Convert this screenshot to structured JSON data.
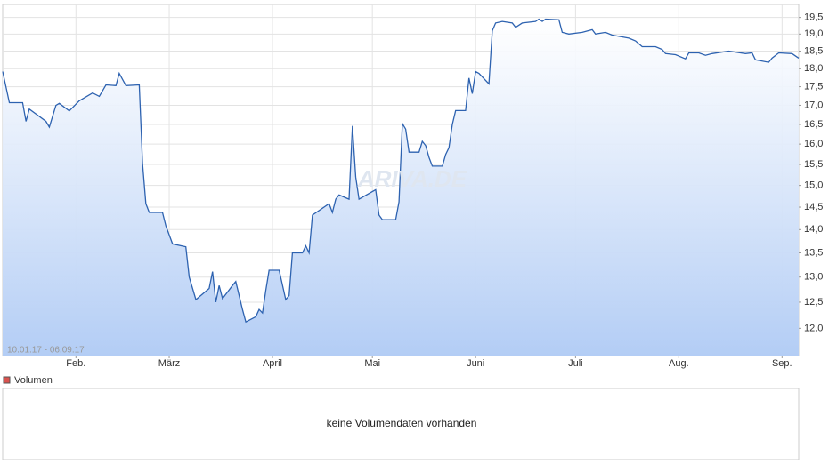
{
  "chart_data": {
    "type": "area",
    "range_label": "10.01.17 - 06.09.17",
    "watermark": "ARIVA.DE",
    "volume_label": "Volumen",
    "volume_color": "#d9534f",
    "volume_message": "keine Volumendaten vorhanden",
    "yscale": "log",
    "grid": true,
    "ylim": [
      11.5,
      19.9
    ],
    "yticks": [
      {
        "value": 12.0,
        "label": "12,0"
      },
      {
        "value": 12.5,
        "label": "12,5"
      },
      {
        "value": 13.0,
        "label": "13,0"
      },
      {
        "value": 13.5,
        "label": "13,5"
      },
      {
        "value": 14.0,
        "label": "14,0"
      },
      {
        "value": 14.5,
        "label": "14,5"
      },
      {
        "value": 15.0,
        "label": "15,0"
      },
      {
        "value": 15.5,
        "label": "15,5"
      },
      {
        "value": 16.0,
        "label": "16,0"
      },
      {
        "value": 16.5,
        "label": "16,5"
      },
      {
        "value": 17.0,
        "label": "17,0"
      },
      {
        "value": 17.5,
        "label": "17,5"
      },
      {
        "value": 18.0,
        "label": "18,0"
      },
      {
        "value": 18.5,
        "label": "18,5"
      },
      {
        "value": 19.0,
        "label": "19,0"
      },
      {
        "value": 19.5,
        "label": "19,5"
      }
    ],
    "xlim": [
      "2017-01-10",
      "2017-09-06"
    ],
    "xticks": [
      {
        "value": "2017-02-01",
        "label": "Feb."
      },
      {
        "value": "2017-03-01",
        "label": "März"
      },
      {
        "value": "2017-04-01",
        "label": "April"
      },
      {
        "value": "2017-05-01",
        "label": "Mai"
      },
      {
        "value": "2017-06-01",
        "label": "Juni"
      },
      {
        "value": "2017-07-01",
        "label": "Juli"
      },
      {
        "value": "2017-08-01",
        "label": "Aug."
      },
      {
        "value": "2017-09-01",
        "label": "Sep."
      }
    ],
    "x": [
      "2017-01-10",
      "2017-01-12",
      "2017-01-16",
      "2017-01-17",
      "2017-01-18",
      "2017-01-23",
      "2017-01-24",
      "2017-01-26",
      "2017-01-27",
      "2017-01-30",
      "2017-02-02",
      "2017-02-06",
      "2017-02-08",
      "2017-02-10",
      "2017-02-13",
      "2017-02-14",
      "2017-02-16",
      "2017-02-20",
      "2017-02-21",
      "2017-02-22",
      "2017-02-23",
      "2017-02-27",
      "2017-02-28",
      "2017-03-02",
      "2017-03-06",
      "2017-03-07",
      "2017-03-09",
      "2017-03-13",
      "2017-03-14",
      "2017-03-15",
      "2017-03-16",
      "2017-03-17",
      "2017-03-20",
      "2017-03-21",
      "2017-03-23",
      "2017-03-24",
      "2017-03-27",
      "2017-03-28",
      "2017-03-29",
      "2017-03-30",
      "2017-03-31",
      "2017-04-03",
      "2017-04-05",
      "2017-04-06",
      "2017-04-07",
      "2017-04-10",
      "2017-04-11",
      "2017-04-12",
      "2017-04-13",
      "2017-04-18",
      "2017-04-19",
      "2017-04-20",
      "2017-04-21",
      "2017-04-24",
      "2017-04-25",
      "2017-04-26",
      "2017-04-27",
      "2017-05-02",
      "2017-05-03",
      "2017-05-04",
      "2017-05-08",
      "2017-05-09",
      "2017-05-10",
      "2017-05-11",
      "2017-05-12",
      "2017-05-15",
      "2017-05-16",
      "2017-05-17",
      "2017-05-18",
      "2017-05-19",
      "2017-05-22",
      "2017-05-23",
      "2017-05-24",
      "2017-05-25",
      "2017-05-26",
      "2017-05-29",
      "2017-05-30",
      "2017-05-31",
      "2017-06-01",
      "2017-06-02",
      "2017-06-05",
      "2017-06-06",
      "2017-06-07",
      "2017-06-09",
      "2017-06-12",
      "2017-06-13",
      "2017-06-15",
      "2017-06-19",
      "2017-06-20",
      "2017-06-21",
      "2017-06-22",
      "2017-06-26",
      "2017-06-27",
      "2017-06-29",
      "2017-07-03",
      "2017-07-06",
      "2017-07-07",
      "2017-07-10",
      "2017-07-12",
      "2017-07-17",
      "2017-07-19",
      "2017-07-21",
      "2017-07-25",
      "2017-07-27",
      "2017-07-28",
      "2017-07-31",
      "2017-08-03",
      "2017-08-04",
      "2017-08-07",
      "2017-08-09",
      "2017-08-11",
      "2017-08-16",
      "2017-08-21",
      "2017-08-23",
      "2017-08-24",
      "2017-08-28",
      "2017-08-29",
      "2017-08-31",
      "2017-09-04",
      "2017-09-06"
    ],
    "series": [
      {
        "color": "#2d62b0",
        "values": [
          17.92,
          17.07,
          17.07,
          16.58,
          16.9,
          16.58,
          16.43,
          17.0,
          17.05,
          16.85,
          17.12,
          17.33,
          17.24,
          17.55,
          17.53,
          17.87,
          17.53,
          17.55,
          15.52,
          14.58,
          14.38,
          14.38,
          14.08,
          13.69,
          13.63,
          13.0,
          12.55,
          12.77,
          13.11,
          12.5,
          12.83,
          12.57,
          12.83,
          12.91,
          12.36,
          12.12,
          12.22,
          12.36,
          12.29,
          12.73,
          13.14,
          13.14,
          12.55,
          12.63,
          13.5,
          13.5,
          13.65,
          13.5,
          14.32,
          14.58,
          14.38,
          14.68,
          14.78,
          14.68,
          16.46,
          15.2,
          14.68,
          14.9,
          14.32,
          14.22,
          14.22,
          14.62,
          16.52,
          16.38,
          15.8,
          15.8,
          16.07,
          15.96,
          15.67,
          15.46,
          15.46,
          15.74,
          15.91,
          16.5,
          16.86,
          16.86,
          17.74,
          17.31,
          17.92,
          17.87,
          17.58,
          19.1,
          19.33,
          19.38,
          19.33,
          19.2,
          19.33,
          19.38,
          19.45,
          19.38,
          19.45,
          19.43,
          19.05,
          19.0,
          19.05,
          19.13,
          19.0,
          19.05,
          18.97,
          18.88,
          18.8,
          18.63,
          18.63,
          18.55,
          18.43,
          18.4,
          18.28,
          18.45,
          18.45,
          18.38,
          18.43,
          18.5,
          18.43,
          18.45,
          18.25,
          18.18,
          18.3,
          18.45,
          18.43,
          18.3
        ]
      }
    ]
  }
}
